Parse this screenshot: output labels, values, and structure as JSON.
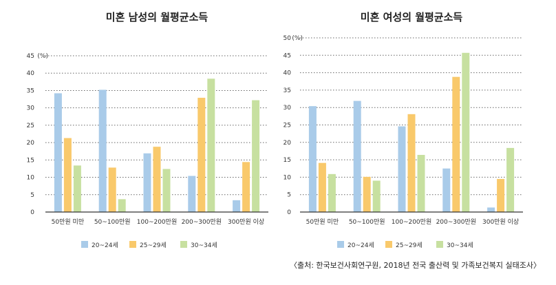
{
  "colors": {
    "s1": "#a9cbe9",
    "s2": "#f9c96b",
    "s3": "#c7e0a0",
    "grid": "#666666",
    "axis": "#333333"
  },
  "chart_data": [
    {
      "type": "bar",
      "title": "미혼 남성의 월평균소득",
      "unit_label": "(%)",
      "ylim": [
        0,
        45
      ],
      "yticks": [
        "0",
        "5",
        "10",
        "15",
        "20",
        "25",
        "30",
        "35",
        "40",
        "45"
      ],
      "categories": [
        "50만원 미만",
        "50~100만원",
        "100~200만원",
        "200~300만원",
        "300만원 이상"
      ],
      "series": [
        {
          "name": "20~24세",
          "values": [
            34.2,
            35.2,
            16.9,
            10.4,
            3.4
          ]
        },
        {
          "name": "25~29세",
          "values": [
            21.3,
            12.8,
            18.8,
            32.9,
            14.4
          ]
        },
        {
          "name": "30~34세",
          "values": [
            13.4,
            3.7,
            12.4,
            38.4,
            32.2
          ]
        }
      ]
    },
    {
      "type": "bar",
      "title": "미혼 여성의 월평균소득",
      "unit_label": "(%)",
      "ylim": [
        0,
        50
      ],
      "yticks": [
        "0",
        "5",
        "10",
        "15",
        "20",
        "25",
        "30",
        "35",
        "40",
        "45",
        "50"
      ],
      "categories": [
        "50만원 미만",
        "50~100만원",
        "100~200만원",
        "200~300만원",
        "300만원 이상"
      ],
      "series": [
        {
          "name": "20~24세",
          "values": [
            30.4,
            31.9,
            24.6,
            12.5,
            1.3
          ]
        },
        {
          "name": "25~29세",
          "values": [
            14.1,
            10.1,
            28.1,
            38.8,
            9.5
          ]
        },
        {
          "name": "30~34세",
          "values": [
            10.9,
            9.0,
            16.4,
            45.7,
            18.4
          ]
        }
      ]
    }
  ],
  "source": "〈출처: 한국보건사회연구원, 2018년 전국 출산력 및 가족보건복지 실태조사〉"
}
